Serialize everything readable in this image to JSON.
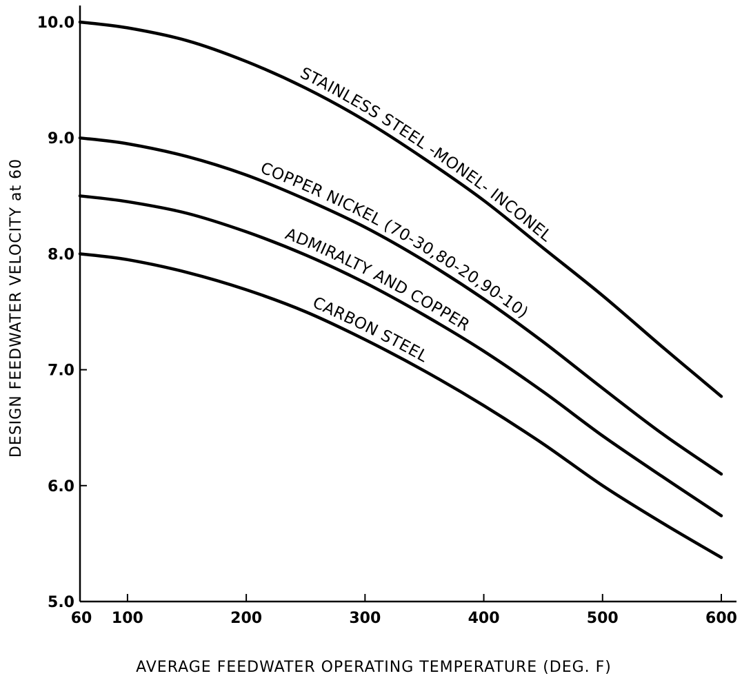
{
  "chart_data": {
    "type": "line",
    "title": "",
    "xlabel": "AVERAGE FEEDWATER OPERATING TEMPERATURE (DEG. F)",
    "ylabel": "DESIGN FEEDWATER VELOCITY at 60",
    "xlim": [
      60,
      620
    ],
    "ylim": [
      5.0,
      10.2
    ],
    "x_ticks": [
      60,
      100,
      200,
      300,
      400,
      500,
      600
    ],
    "x_tick_labels": [
      "60",
      "100",
      "200",
      "300",
      "400",
      "500",
      "600"
    ],
    "y_ticks": [
      5.0,
      6.0,
      7.0,
      8.0,
      9.0,
      10.0
    ],
    "y_tick_labels": [
      "5.0",
      "6.0",
      "7.0",
      "8.0",
      "9.0",
      "10.0"
    ],
    "grid": false,
    "legend": "none (curves labeled inline)",
    "x": [
      60,
      100,
      150,
      200,
      250,
      300,
      350,
      400,
      450,
      500,
      550,
      600
    ],
    "series": [
      {
        "name": "STAINLESS STEEL -MONEL- INCONEL",
        "values": [
          10.0,
          9.95,
          9.84,
          9.66,
          9.43,
          9.15,
          8.82,
          8.46,
          8.05,
          7.64,
          7.2,
          6.77
        ]
      },
      {
        "name": "COPPER NICKEL (70-30,80-20,90-10)",
        "values": [
          9.0,
          8.95,
          8.84,
          8.68,
          8.47,
          8.23,
          7.94,
          7.61,
          7.24,
          6.84,
          6.45,
          6.1
        ]
      },
      {
        "name": "ADMIRALTY AND COPPER",
        "values": [
          8.5,
          8.45,
          8.35,
          8.19,
          7.99,
          7.75,
          7.47,
          7.16,
          6.81,
          6.43,
          6.08,
          5.74
        ]
      },
      {
        "name": "CARBON STEEL",
        "values": [
          8.0,
          7.95,
          7.84,
          7.69,
          7.5,
          7.26,
          6.99,
          6.69,
          6.36,
          6.0,
          5.68,
          5.38
        ]
      }
    ]
  }
}
